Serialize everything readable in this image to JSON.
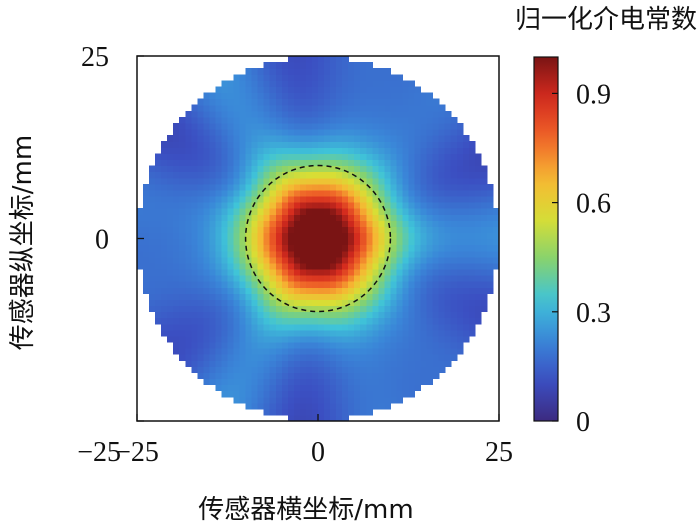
{
  "chart_data": {
    "type": "heatmap",
    "title": "",
    "xlabel": "传感器横坐标/mm",
    "ylabel": "传感器纵坐标/mm",
    "xlim": [
      -25,
      25
    ],
    "ylim": [
      -25,
      25
    ],
    "x_ticks": [
      {
        "value": -25,
        "label": "−25"
      },
      {
        "value": 0,
        "label": "0"
      },
      {
        "value": 25,
        "label": "25"
      }
    ],
    "y_ticks": [
      {
        "value": 25,
        "label": "25"
      },
      {
        "value": 0,
        "label": "0"
      },
      {
        "value": -25,
        "label": "−25"
      }
    ],
    "imaging_region_radius": 25,
    "peak": {
      "x": 0,
      "y": 0,
      "value": 1.0
    },
    "inclusion_circle": {
      "x": 0,
      "y": 0,
      "radius": 10,
      "style": "dashed"
    },
    "colorbar": {
      "label": "归一化介电常数",
      "range": [
        0,
        1
      ],
      "ticks": [
        {
          "value": 0,
          "label": "0"
        },
        {
          "value": 0.3,
          "label": "0.3"
        },
        {
          "value": 0.6,
          "label": "0.6"
        },
        {
          "value": 0.9,
          "label": "0.9"
        }
      ],
      "colormap": [
        "#3c2a80",
        "#3b4fc2",
        "#3a86d8",
        "#3fc4d8",
        "#86d26e",
        "#d8de35",
        "#f6b733",
        "#ef6428",
        "#d42a1e",
        "#7a1414"
      ]
    },
    "grid": false
  }
}
